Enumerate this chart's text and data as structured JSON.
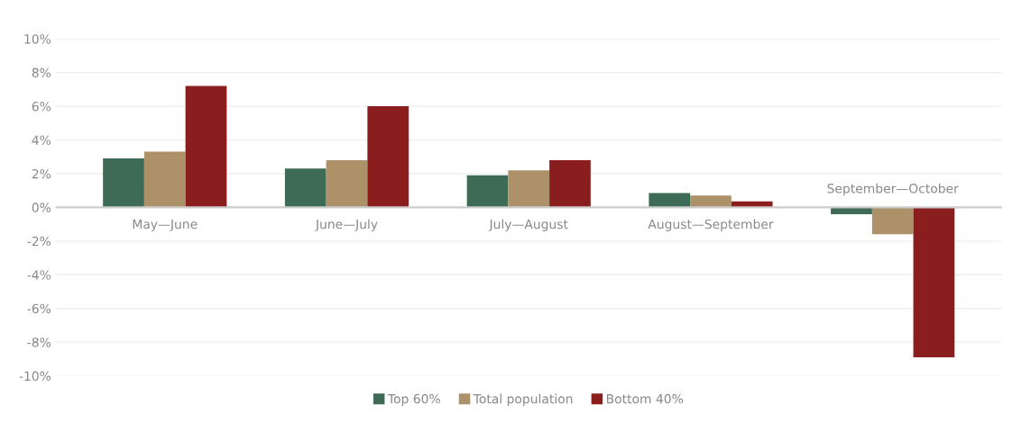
{
  "chart_data": {
    "type": "bar",
    "categories": [
      "May—June",
      "June—July",
      "July—August",
      "August—September",
      "September—October"
    ],
    "series": [
      {
        "name": "Top 60%",
        "color": "#3e6b55",
        "values": [
          2.9,
          2.3,
          1.9,
          0.85,
          -0.4
        ]
      },
      {
        "name": "Total population",
        "color": "#ad9169",
        "values": [
          3.3,
          2.8,
          2.2,
          0.7,
          -1.6
        ]
      },
      {
        "name": "Bottom 40%",
        "color": "#8a1e1e",
        "values": [
          7.2,
          6.0,
          2.8,
          0.35,
          -8.9
        ]
      }
    ],
    "ylim": [
      -10,
      10
    ],
    "yticks": [
      {
        "value": -10,
        "label": "-10%"
      },
      {
        "value": -8,
        "label": "-8%"
      },
      {
        "value": -6,
        "label": "-6%"
      },
      {
        "value": -4,
        "label": "-4%"
      },
      {
        "value": -2,
        "label": "-2%"
      },
      {
        "value": 0,
        "label": "0%"
      },
      {
        "value": 2,
        "label": "2%"
      },
      {
        "value": 4,
        "label": "4%"
      },
      {
        "value": 6,
        "label": "6%"
      },
      {
        "value": 8,
        "label": "8%"
      },
      {
        "value": 10,
        "label": "10%"
      }
    ],
    "grid": "y",
    "legend": "bottom"
  }
}
